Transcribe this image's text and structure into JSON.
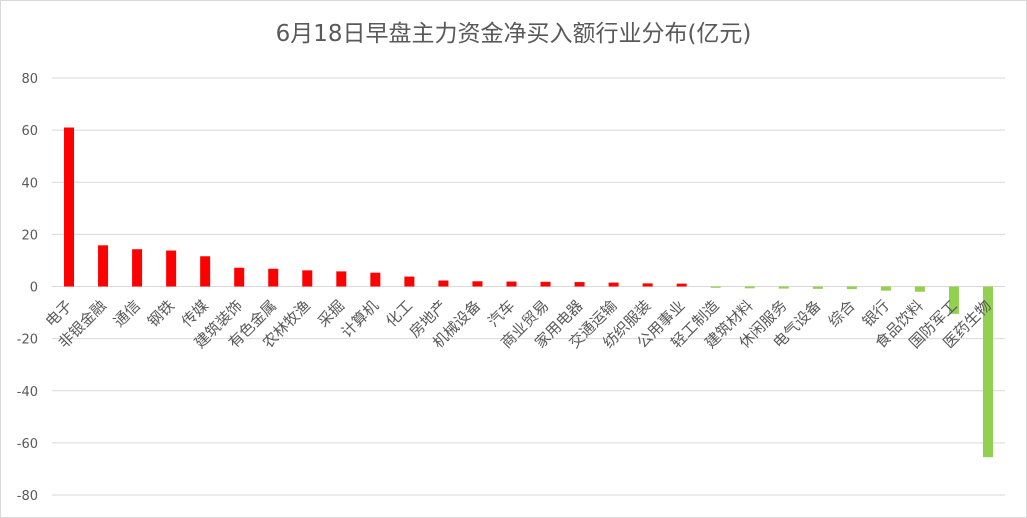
{
  "chart_data": {
    "type": "bar",
    "title": "6月18日早盘主力资金净买入额行业分布(亿元)",
    "xlabel": "",
    "ylabel": "",
    "ylim": [
      -80,
      80
    ],
    "yticks": [
      80,
      60,
      40,
      20,
      0,
      -20,
      -40,
      -60,
      -80
    ],
    "grid": true,
    "legend": "none",
    "colors": {
      "positive": "#ff0000",
      "negative": "#92d050",
      "grid": "#d9d9d9",
      "text": "#595959"
    },
    "categories": [
      "电子",
      "非银金融",
      "通信",
      "钢铁",
      "传媒",
      "建筑装饰",
      "有色金属",
      "农林牧渔",
      "采掘",
      "计算机",
      "化工",
      "房地产",
      "机械设备",
      "汽车",
      "商业贸易",
      "家用电器",
      "交通运输",
      "纺织服装",
      "公用事业",
      "轻工制造",
      "建筑材料",
      "休闲服务",
      "电气设备",
      "综合",
      "银行",
      "食品饮料",
      "国防军工",
      "医药生物"
    ],
    "values": [
      61,
      15.8,
      14.3,
      13.8,
      11.6,
      7.2,
      6.8,
      6.2,
      5.8,
      5.3,
      3.8,
      2.3,
      2.0,
      1.9,
      1.8,
      1.7,
      1.5,
      1.2,
      1.1,
      -0.5,
      -0.7,
      -0.8,
      -0.9,
      -1.0,
      -1.6,
      -2.0,
      -10.5,
      -65.5
    ]
  }
}
